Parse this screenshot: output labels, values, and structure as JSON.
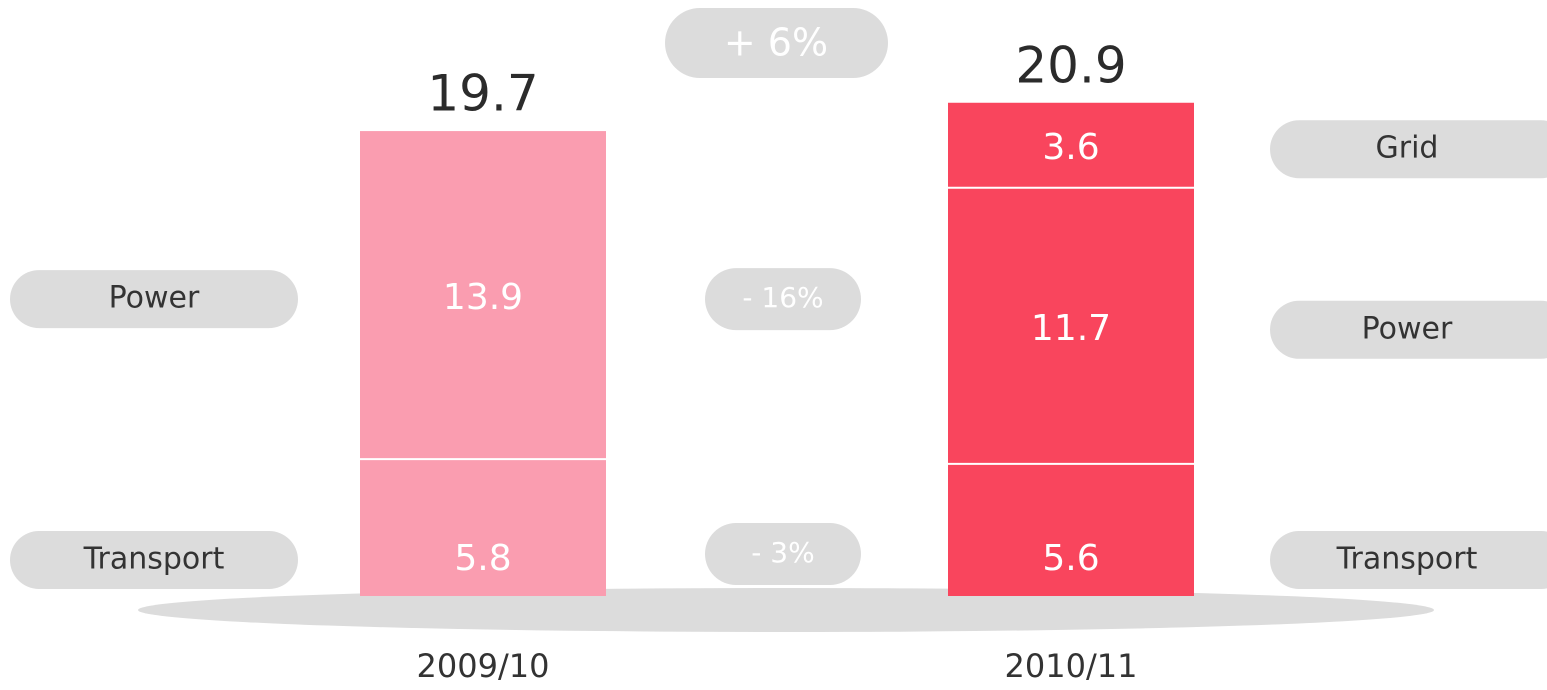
{
  "chart_data": {
    "type": "stacked_bar",
    "categories": [
      "2009/10",
      "2010/11"
    ],
    "category_colors": [
      "#fa9db0",
      "#f9455d"
    ],
    "series": [
      {
        "name": "Transport",
        "values": [
          5.8,
          5.6
        ],
        "change": "- 3%"
      },
      {
        "name": "Power",
        "values": [
          13.9,
          11.7
        ],
        "change": "- 16%"
      },
      {
        "name": "Grid",
        "values": [
          null,
          3.6
        ]
      }
    ],
    "totals": [
      19.7,
      20.9
    ],
    "total_change": "+ 6%"
  }
}
